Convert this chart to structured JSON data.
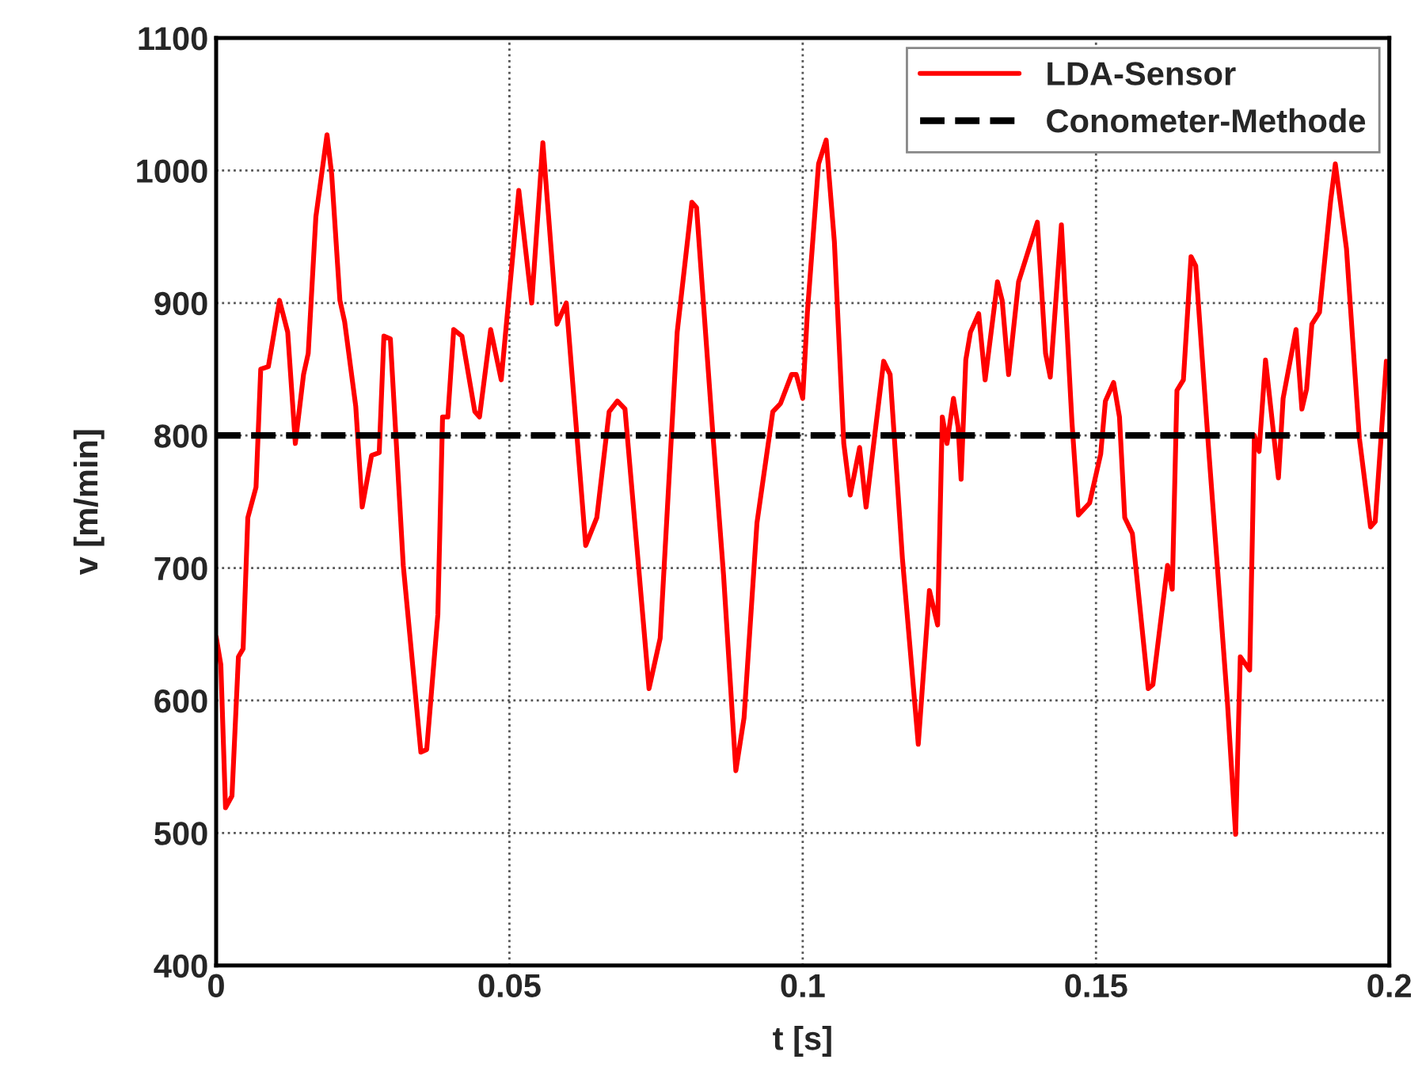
{
  "chart_data": {
    "type": "line",
    "xlabel": "t [s]",
    "ylabel": "v [m/min]",
    "xlim": [
      0,
      0.2
    ],
    "xticks": [
      0,
      0.05,
      0.1,
      0.15,
      0.2
    ],
    "ylim": [
      400,
      1100
    ],
    "yticks": [
      400,
      500,
      600,
      700,
      800,
      900,
      1000,
      1100
    ],
    "grid": true,
    "legend": "top right",
    "series": [
      {
        "name": "LDA-Sensor",
        "color": "#ff0000",
        "line_style": "solid",
        "x": [
          0,
          0.0008,
          0.0016,
          0.0027,
          0.0038,
          0.0046,
          0.0054,
          0.0068,
          0.0076,
          0.0089,
          0.0108,
          0.0122,
          0.0135,
          0.0149,
          0.0157,
          0.017,
          0.0189,
          0.0197,
          0.0211,
          0.0219,
          0.0238,
          0.0249,
          0.0265,
          0.0278,
          0.0286,
          0.0297,
          0.0319,
          0.0349,
          0.0359,
          0.0378,
          0.0386,
          0.0395,
          0.0405,
          0.0419,
          0.0441,
          0.0449,
          0.0468,
          0.0486,
          0.0516,
          0.0538,
          0.0557,
          0.0581,
          0.0597,
          0.063,
          0.0649,
          0.067,
          0.0684,
          0.0697,
          0.0719,
          0.0738,
          0.0757,
          0.0786,
          0.0811,
          0.0819,
          0.0846,
          0.0865,
          0.0886,
          0.09,
          0.0922,
          0.0949,
          0.0962,
          0.0981,
          0.0989,
          0.1,
          0.1008,
          0.1027,
          0.104,
          0.1054,
          0.107,
          0.1081,
          0.1097,
          0.1108,
          0.1138,
          0.1149,
          0.117,
          0.1197,
          0.1216,
          0.123,
          0.1238,
          0.1246,
          0.1257,
          0.1265,
          0.127,
          0.1278,
          0.1286,
          0.13,
          0.1311,
          0.1332,
          0.134,
          0.1351,
          0.1368,
          0.14,
          0.1414,
          0.1422,
          0.1441,
          0.1459,
          0.147,
          0.1489,
          0.1508,
          0.1516,
          0.153,
          0.154,
          0.1549,
          0.1562,
          0.1589,
          0.1597,
          0.1622,
          0.163,
          0.1638,
          0.1649,
          0.1662,
          0.167,
          0.1692,
          0.1724,
          0.1738,
          0.1746,
          0.1762,
          0.177,
          0.1778,
          0.1789,
          0.1811,
          0.1819,
          0.1841,
          0.1851,
          0.1859,
          0.1868,
          0.1881,
          0.19,
          0.1908,
          0.1927,
          0.1949,
          0.1968,
          0.1976,
          0.1995
        ],
        "values": [
          648,
          627,
          519,
          528,
          633,
          639,
          738,
          761,
          850,
          852,
          902,
          878,
          794,
          846,
          862,
          965,
          1027,
          997,
          902,
          886,
          822,
          746,
          785,
          787,
          875,
          873,
          702,
          561,
          563,
          665,
          814,
          814,
          880,
          875,
          818,
          814,
          880,
          842,
          985,
          900,
          1021,
          884,
          900,
          717,
          738,
          818,
          826,
          820,
          707,
          609,
          647,
          878,
          976,
          972,
          806,
          695,
          547,
          587,
          734,
          818,
          824,
          846,
          846,
          828,
          893,
          1005,
          1023,
          946,
          794,
          755,
          791,
          746,
          856,
          846,
          707,
          567,
          683,
          657,
          814,
          794,
          828,
          806,
          767,
          857,
          878,
          892,
          842,
          916,
          902,
          846,
          916,
          961,
          862,
          844,
          959,
          810,
          740,
          749,
          786,
          826,
          840,
          814,
          738,
          726,
          609,
          612,
          702,
          684,
          834,
          842,
          935,
          928,
          790,
          599,
          499,
          633,
          623,
          800,
          788,
          857,
          768,
          828,
          880,
          820,
          835,
          884,
          893,
          977,
          1005,
          941,
          798,
          731,
          735,
          856
        ]
      },
      {
        "name": "Conometer-Methode",
        "color": "#000000",
        "line_style": "dashed",
        "x": [
          0,
          0.2
        ],
        "values": [
          800,
          800
        ]
      }
    ]
  }
}
